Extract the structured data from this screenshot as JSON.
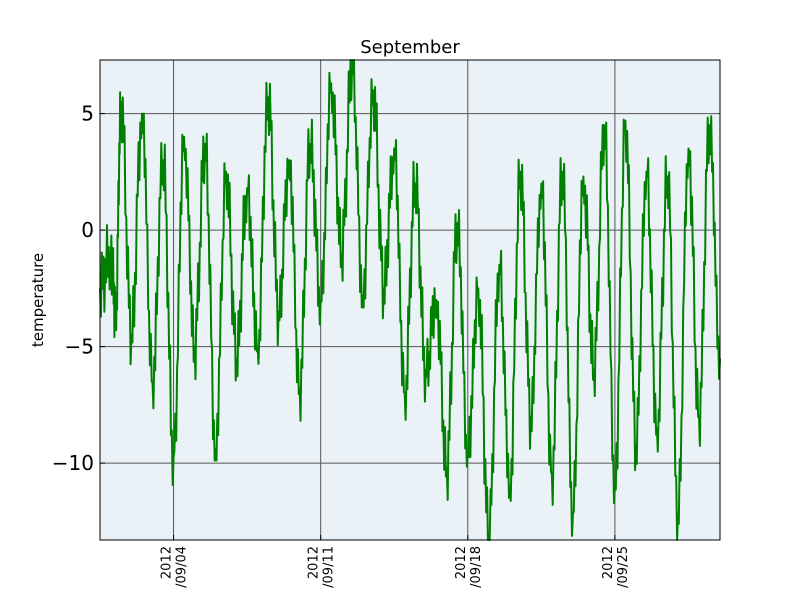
{
  "chart_data": {
    "type": "line",
    "title": "September",
    "xlabel": "",
    "ylabel": "temperature",
    "xlim": [
      "2012-08-31T12:00",
      "2012-09-30T00:00"
    ],
    "ylim": [
      -13.3,
      7.3
    ],
    "grid": true,
    "y_ticks": [
      {
        "value": -10,
        "label": "−10"
      },
      {
        "value": -5,
        "label": "−5"
      },
      {
        "value": 0,
        "label": "0"
      },
      {
        "value": 5,
        "label": "5"
      }
    ],
    "x_ticks": [
      {
        "date": "2012-09-04",
        "line1": "2012",
        "line2": "/09/04"
      },
      {
        "date": "2012-09-11",
        "line1": "2012",
        "line2": "/09/11"
      },
      {
        "date": "2012-09-18",
        "line1": "2012",
        "line2": "/09/18"
      },
      {
        "date": "2012-09-25",
        "line1": "2012",
        "line2": "/09/25"
      }
    ],
    "colors": {
      "line": "#008000",
      "plot_bg": "#eaf2f8",
      "grid": "#555555"
    },
    "series": [
      {
        "x": [
          "2012-08-31T12:00",
          "2012-09-01T00:00",
          "2012-09-01T06:00",
          "2012-09-01T12:00",
          "2012-09-02T00:00",
          "2012-09-02T12:00",
          "2012-09-03T00:00",
          "2012-09-03T12:00",
          "2012-09-04T00:00",
          "2012-09-04T12:00",
          "2012-09-05T00:00",
          "2012-09-05T12:00",
          "2012-09-06T00:00",
          "2012-09-06T12:00",
          "2012-09-07T00:00",
          "2012-09-07T12:00",
          "2012-09-08T00:00",
          "2012-09-08T12:00",
          "2012-09-09T00:00",
          "2012-09-09T12:00",
          "2012-09-10T00:00",
          "2012-09-10T12:00",
          "2012-09-11T00:00",
          "2012-09-11T12:00",
          "2012-09-12T00:00",
          "2012-09-12T12:00",
          "2012-09-13T00:00",
          "2012-09-13T12:00",
          "2012-09-14T00:00",
          "2012-09-14T12:00",
          "2012-09-15T00:00",
          "2012-09-15T12:00",
          "2012-09-16T00:00",
          "2012-09-16T12:00",
          "2012-09-17T00:00",
          "2012-09-17T12:00",
          "2012-09-18T00:00",
          "2012-09-18T12:00",
          "2012-09-19T00:00",
          "2012-09-19T12:00",
          "2012-09-20T00:00",
          "2012-09-20T12:00",
          "2012-09-21T00:00",
          "2012-09-21T12:00",
          "2012-09-22T00:00",
          "2012-09-22T12:00",
          "2012-09-23T00:00",
          "2012-09-23T12:00",
          "2012-09-24T00:00",
          "2012-09-24T12:00",
          "2012-09-25T00:00",
          "2012-09-25T12:00",
          "2012-09-26T00:00",
          "2012-09-26T12:00",
          "2012-09-27T00:00",
          "2012-09-27T12:00",
          "2012-09-28T00:00",
          "2012-09-28T12:00",
          "2012-09-29T00:00",
          "2012-09-29T12:00",
          "2012-09-30T00:00"
        ],
        "y": [
          -2.5,
          -1.0,
          -3.5,
          5.5,
          -4.5,
          5.0,
          -6.5,
          3.0,
          -9.7,
          4.0,
          -5.0,
          3.7,
          -9.4,
          2.5,
          -5.5,
          1.8,
          -5.0,
          5.7,
          -3.5,
          3.0,
          -6.8,
          3.7,
          -3.0,
          6.3,
          -1.0,
          7.3,
          -2.8,
          6.0,
          -2.5,
          3.5,
          -7.0,
          2.0,
          -6.0,
          -3.0,
          -10.2,
          0.3,
          -9.5,
          -2.5,
          -13.3,
          -1.5,
          -11.0,
          2.5,
          -8.0,
          2.0,
          -10.5,
          2.5,
          -12.2,
          2.3,
          -6.0,
          4.5,
          -11.0,
          4.7,
          -9.2,
          2.5,
          -8.5,
          2.3,
          -12.2,
          3.5,
          -8.0,
          4.5,
          -5.5
        ]
      }
    ]
  }
}
